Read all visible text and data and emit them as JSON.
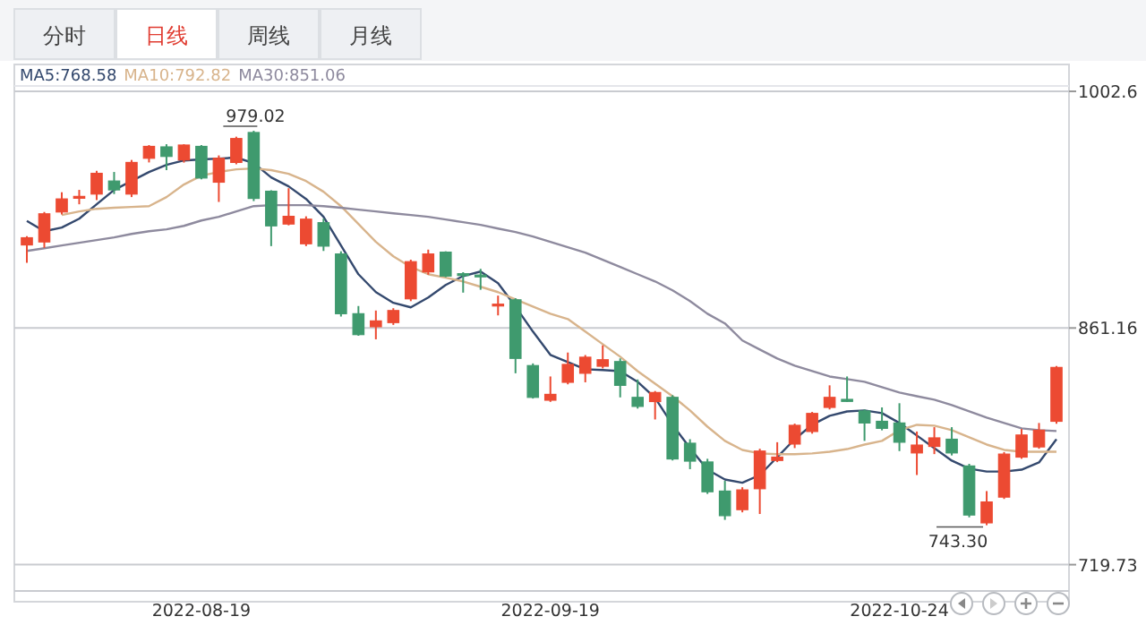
{
  "chart_data": {
    "type": "candlestick",
    "categories": [
      null,
      null,
      null,
      null,
      null,
      null,
      null,
      null,
      null,
      null,
      "2022-08-19",
      null,
      null,
      null,
      null,
      null,
      null,
      null,
      null,
      null,
      null,
      null,
      null,
      null,
      null,
      null,
      null,
      null,
      null,
      null,
      "2022-09-19",
      null,
      null,
      null,
      null,
      null,
      null,
      null,
      null,
      null,
      null,
      null,
      null,
      null,
      null,
      null,
      null,
      null,
      null,
      null,
      "2022-10-24",
      null,
      null,
      null,
      null,
      null,
      null,
      null,
      null,
      null
    ],
    "ohlc": [
      [
        910.8,
        916.1,
        900.1,
        915.1
      ],
      [
        912.6,
        930.5,
        909.1,
        929.4
      ],
      [
        930.5,
        942.3,
        929.0,
        938.3
      ],
      [
        938.7,
        943.7,
        935.1,
        939.8
      ],
      [
        941.2,
        955.1,
        937.6,
        953.6
      ],
      [
        949.0,
        954.4,
        941.2,
        943.7
      ],
      [
        941.2,
        961.6,
        939.4,
        960.1
      ],
      [
        962.6,
        970.5,
        960.1,
        969.7
      ],
      [
        969.4,
        971.0,
        955.5,
        963.7
      ],
      [
        961.6,
        971.0,
        960.0,
        970.5
      ],
      [
        969.7,
        970.5,
        950.0,
        950.8
      ],
      [
        948.3,
        964.3,
        936.5,
        962.6
      ],
      [
        960.1,
        975.5,
        959.0,
        974.4
      ],
      [
        978.0,
        979.02,
        937.0,
        938.6
      ],
      [
        942.9,
        943.5,
        910.1,
        922.2
      ],
      [
        923.3,
        944.7,
        922.5,
        927.9
      ],
      [
        911.5,
        927.9,
        910.1,
        926.2
      ],
      [
        924.1,
        926.5,
        907.2,
        910.1
      ],
      [
        905.4,
        907.0,
        868.0,
        869.7
      ],
      [
        869.7,
        874.3,
        856.5,
        857.2
      ],
      [
        861.9,
        871.6,
        854.4,
        865.4
      ],
      [
        864.4,
        873.0,
        863.0,
        871.6
      ],
      [
        878.6,
        902.0,
        877.2,
        900.8
      ],
      [
        894.7,
        908.0,
        893.0,
        905.4
      ],
      [
        906.5,
        907.0,
        891.5,
        892.2
      ],
      [
        893.6,
        894.5,
        882.3,
        893.0
      ],
      [
        892.8,
        896.5,
        884.0,
        891.8
      ],
      [
        874.6,
        880.5,
        868.7,
        875.4
      ],
      [
        878.0,
        879.0,
        834.1,
        843.0
      ],
      [
        838.7,
        840.0,
        819.0,
        819.7
      ],
      [
        818.0,
        832.2,
        817.0,
        821.5
      ],
      [
        828.7,
        846.5,
        827.5,
        839.4
      ],
      [
        834.1,
        845.0,
        828.7,
        843.7
      ],
      [
        838.3,
        850.8,
        837.0,
        842.2
      ],
      [
        841.1,
        843.0,
        819.7,
        826.9
      ],
      [
        819.7,
        830.4,
        813.0,
        814.3
      ],
      [
        817.2,
        823.5,
        806.5,
        822.6
      ],
      [
        819.7,
        821.0,
        782.0,
        782.9
      ],
      [
        792.3,
        794.7,
        776.8,
        781.6
      ],
      [
        781.1,
        783.0,
        762.0,
        763.3
      ],
      [
        763.7,
        769.8,
        746.5,
        749.0
      ],
      [
        752.6,
        766.0,
        751.0,
        764.4
      ],
      [
        765.1,
        789.0,
        750.0,
        787.6
      ],
      [
        782.0,
        792.9,
        781.0,
        784.0
      ],
      [
        791.8,
        804.0,
        789.4,
        803.0
      ],
      [
        799.3,
        811.0,
        798.0,
        810.1
      ],
      [
        813.7,
        826.9,
        812.5,
        819.7
      ],
      [
        818.5,
        832.2,
        817.0,
        817.3
      ],
      [
        811.6,
        812.5,
        793.7,
        804.4
      ],
      [
        805.4,
        813.7,
        800.0,
        801.2
      ],
      [
        804.4,
        816.2,
        787.6,
        792.9
      ],
      [
        786.5,
        799.3,
        773.3,
        791.2
      ],
      [
        790.4,
        801.9,
        785.8,
        795.5
      ],
      [
        794.7,
        801.9,
        785.0,
        786.5
      ],
      [
        778.7,
        780.0,
        748.0,
        749.4
      ],
      [
        744.7,
        763.7,
        743.3,
        757.2
      ],
      [
        760.1,
        787.0,
        759.0,
        785.8
      ],
      [
        784.0,
        800.8,
        783.0,
        797.2
      ],
      [
        790.1,
        804.4,
        789.0,
        800.1
      ],
      [
        805.4,
        838.5,
        804.0,
        837.6
      ]
    ],
    "colors": [
      "#ec4a32",
      "#ec4a32",
      "#ec4a32",
      "#ec4a32",
      "#ec4a32",
      "#3f9a6e",
      "#ec4a32",
      "#ec4a32",
      "#3f9a6e",
      "#ec4a32",
      "#3f9a6e",
      "#ec4a32",
      "#ec4a32",
      "#3f9a6e",
      "#3f9a6e",
      "#ec4a32",
      "#ec4a32",
      "#3f9a6e",
      "#3f9a6e",
      "#3f9a6e",
      "#ec4a32",
      "#ec4a32",
      "#ec4a32",
      "#ec4a32",
      "#3f9a6e",
      "#3f9a6e",
      "#3f9a6e",
      "#ec4a32",
      "#3f9a6e",
      "#3f9a6e",
      "#ec4a32",
      "#ec4a32",
      "#ec4a32",
      "#ec4a32",
      "#3f9a6e",
      "#3f9a6e",
      "#ec4a32",
      "#3f9a6e",
      "#3f9a6e",
      "#3f9a6e",
      "#3f9a6e",
      "#ec4a32",
      "#ec4a32",
      "#ec4a32",
      "#ec4a32",
      "#ec4a32",
      "#ec4a32",
      "#3f9a6e",
      "#3f9a6e",
      "#3f9a6e",
      "#3f9a6e",
      "#ec4a32",
      "#ec4a32",
      "#3f9a6e",
      "#3f9a6e",
      "#ec4a32",
      "#ec4a32",
      "#ec4a32",
      "#ec4a32",
      "#ec4a32"
    ],
    "series": [
      {
        "name": "MA5:768.58",
        "type": "line",
        "color": "#34496e",
        "values": [
          925.1,
          919.0,
          921.2,
          926.5,
          935.1,
          943.7,
          949.0,
          954.4,
          958.7,
          961.3,
          961.9,
          962.4,
          963.0,
          959.7,
          951.2,
          945.8,
          938.3,
          927.6,
          910.5,
          893.3,
          882.6,
          876.2,
          873.5,
          879.4,
          886.9,
          892.2,
          894.9,
          887.9,
          874.0,
          859.0,
          845.1,
          840.8,
          836.5,
          836.0,
          835.4,
          829.0,
          819.4,
          803.3,
          789.4,
          776.5,
          770.6,
          768.7,
          773.3,
          784.0,
          794.7,
          803.3,
          808.7,
          811.3,
          811.9,
          810.3,
          804.4,
          796.9,
          789.4,
          781.9,
          777.1,
          775.4,
          775.4,
          776.5,
          780.8,
          794.7
        ]
      },
      {
        "name": "MA10:792.82",
        "type": "line",
        "color": "#d8b48c",
        "values": [
          null,
          null,
          928.7,
          930.8,
          932.4,
          933.0,
          933.5,
          934.0,
          939.4,
          946.9,
          952.2,
          954.4,
          956.0,
          956.5,
          955.5,
          953.3,
          949.0,
          942.6,
          934.0,
          923.3,
          912.6,
          904.0,
          897.6,
          893.3,
          891.2,
          889.0,
          885.8,
          882.6,
          878.3,
          874.0,
          869.7,
          866.5,
          859.0,
          851.5,
          844.0,
          835.4,
          827.9,
          820.4,
          811.9,
          802.2,
          793.7,
          788.3,
          786.2,
          785.7,
          785.7,
          786.2,
          787.2,
          788.8,
          791.5,
          793.7,
          800.1,
          803.3,
          802.8,
          800.1,
          795.8,
          791.5,
          788.3,
          787.2,
          787.2,
          787.2
        ]
      },
      {
        "name": "MA30:851.06",
        "type": "line",
        "color": "#8e8a9e",
        "values": [
          907.2,
          908.8,
          910.5,
          912.1,
          913.7,
          915.3,
          917.4,
          919.0,
          920.1,
          922.2,
          925.4,
          927.6,
          930.8,
          934.0,
          934.6,
          934.6,
          934.6,
          934.0,
          933.0,
          931.9,
          930.8,
          929.7,
          928.7,
          927.6,
          926.0,
          924.4,
          922.8,
          920.6,
          918.5,
          915.8,
          912.6,
          909.4,
          906.2,
          901.9,
          897.6,
          893.3,
          889.0,
          883.7,
          877.2,
          869.7,
          863.9,
          853.7,
          848.3,
          842.9,
          838.7,
          835.4,
          832.2,
          830.6,
          829.0,
          825.8,
          822.6,
          820.4,
          818.3,
          815.1,
          811.3,
          807.6,
          804.4,
          801.2,
          800.1,
          799.6
        ]
      }
    ],
    "ylim": [
      704,
      1002.6
    ],
    "yticks": [
      1002.6,
      861.16,
      719.73
    ],
    "grid": "y",
    "legend": "top left",
    "annotations": [
      "分时",
      "日线",
      "周线",
      "月线",
      "979.02",
      "743.30"
    ]
  }
}
